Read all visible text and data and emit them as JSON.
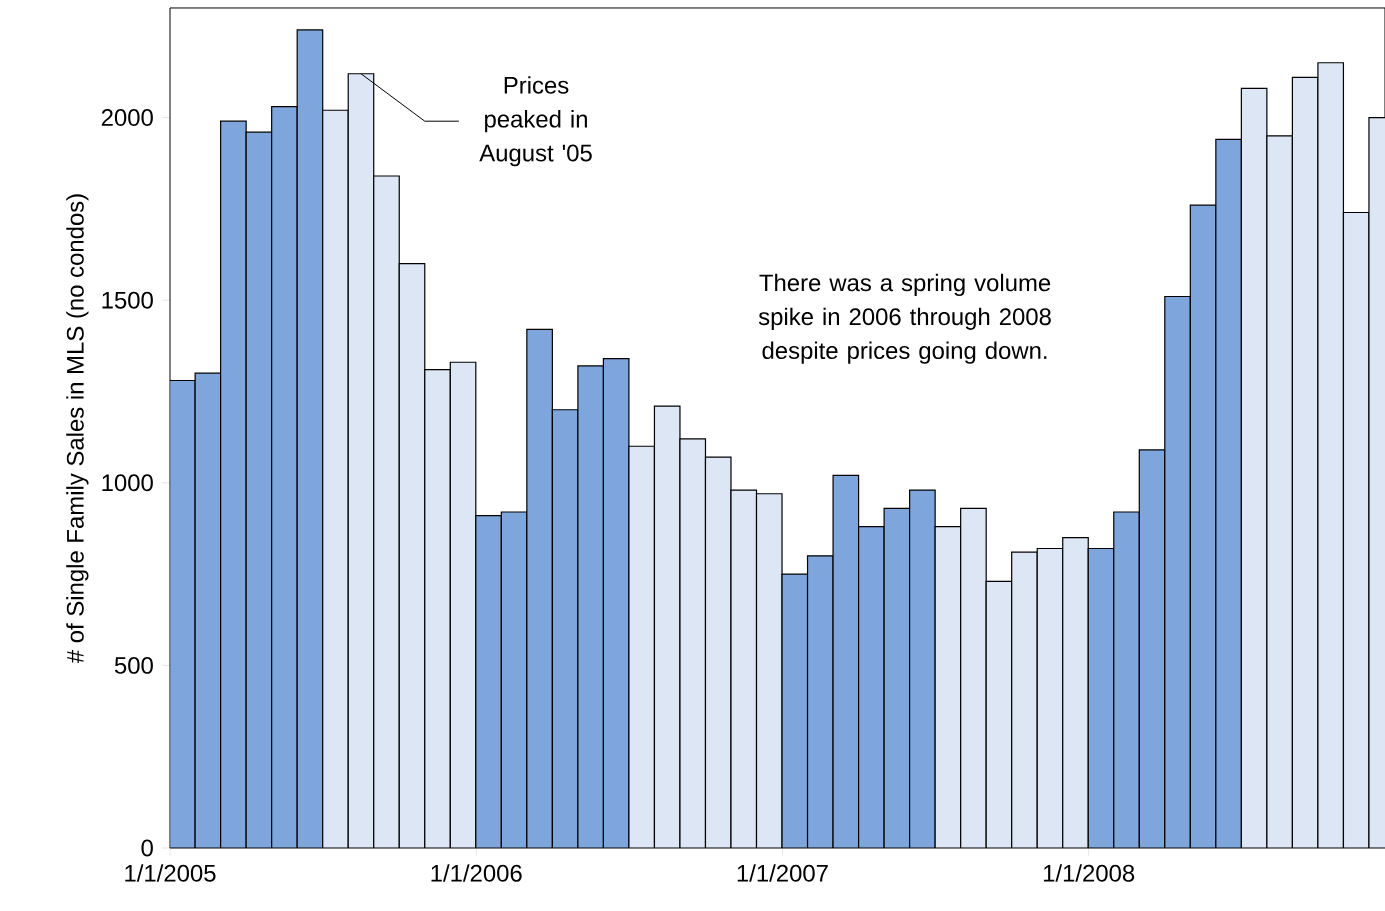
{
  "chart_data": {
    "type": "bar",
    "ylabel": "# of Single Family Sales in MLS (no condos)",
    "x": [
      "2005-01-16",
      "2005-02-16",
      "2005-03-16",
      "2005-04-16",
      "2005-05-16",
      "2005-06-16",
      "2005-07-16",
      "2005-08-16",
      "2005-09-16",
      "2005-10-16",
      "2005-11-16",
      "2005-12-16",
      "2006-01-16",
      "2006-02-16",
      "2006-03-16",
      "2006-04-16",
      "2006-05-16",
      "2006-06-16",
      "2006-07-16",
      "2006-08-16",
      "2006-09-16",
      "2006-10-16",
      "2006-11-16",
      "2006-12-16",
      "2007-01-16",
      "2007-02-16",
      "2007-03-16",
      "2007-04-16",
      "2007-05-16",
      "2007-06-16",
      "2007-07-16",
      "2007-08-16",
      "2007-09-16",
      "2007-10-16",
      "2007-11-16",
      "2007-12-16",
      "2008-01-16",
      "2008-02-16",
      "2008-03-16",
      "2008-04-16",
      "2008-05-16",
      "2008-06-16",
      "2008-07-16",
      "2008-08-16",
      "2008-09-16",
      "2008-10-16",
      "2008-11-16",
      "2008-12-16"
    ],
    "values": [
      1280,
      1300,
      1990,
      1960,
      2030,
      2240,
      2020,
      2120,
      1840,
      1600,
      1310,
      1330,
      910,
      920,
      1420,
      1200,
      1320,
      1340,
      1100,
      1210,
      1120,
      1070,
      980,
      970,
      750,
      800,
      1020,
      880,
      930,
      980,
      880,
      930,
      730,
      810,
      820,
      850,
      820,
      920,
      1090,
      1510,
      1760,
      1940,
      2080,
      1950,
      2110,
      2150,
      1740,
      2000
    ],
    "colors": [
      "#7ea6dc",
      "#7ea6dc",
      "#7ea6dc",
      "#7ea6dc",
      "#7ea6dc",
      "#7ea6dc",
      "#dce6f4",
      "#dce6f4",
      "#dce6f4",
      "#dce6f4",
      "#dce6f4",
      "#dce6f4",
      "#7ea6dc",
      "#7ea6dc",
      "#7ea6dc",
      "#7ea6dc",
      "#7ea6dc",
      "#7ea6dc",
      "#dce6f4",
      "#dce6f4",
      "#dce6f4",
      "#dce6f4",
      "#dce6f4",
      "#dce6f4",
      "#7ea6dc",
      "#7ea6dc",
      "#7ea6dc",
      "#7ea6dc",
      "#7ea6dc",
      "#7ea6dc",
      "#dce6f4",
      "#dce6f4",
      "#dce6f4",
      "#dce6f4",
      "#dce6f4",
      "#dce6f4",
      "#7ea6dc",
      "#7ea6dc",
      "#7ea6dc",
      "#7ea6dc",
      "#7ea6dc",
      "#7ea6dc",
      "#dce6f4",
      "#dce6f4",
      "#dce6f4",
      "#dce6f4",
      "#dce6f4",
      "#dce6f4"
    ],
    "xlim": [
      "2005-01-01",
      "2008-12-20"
    ],
    "ylim": [
      0,
      2300
    ],
    "xticks": [
      {
        "value": "2005-01-01",
        "label": "1/1/2005"
      },
      {
        "value": "2006-01-01",
        "label": "1/1/2006"
      },
      {
        "value": "2007-01-01",
        "label": "1/1/2007"
      },
      {
        "value": "2008-01-01",
        "label": "1/1/2008"
      }
    ],
    "yticks": [
      0,
      500,
      1000,
      1500,
      2000
    ],
    "annotations": [
      {
        "text": "Prices peaked in August '05",
        "x": "2005-08-16",
        "y": 2120
      },
      "There was a spring volume spike in 2006 through 2008 despite prices going down."
    ]
  }
}
